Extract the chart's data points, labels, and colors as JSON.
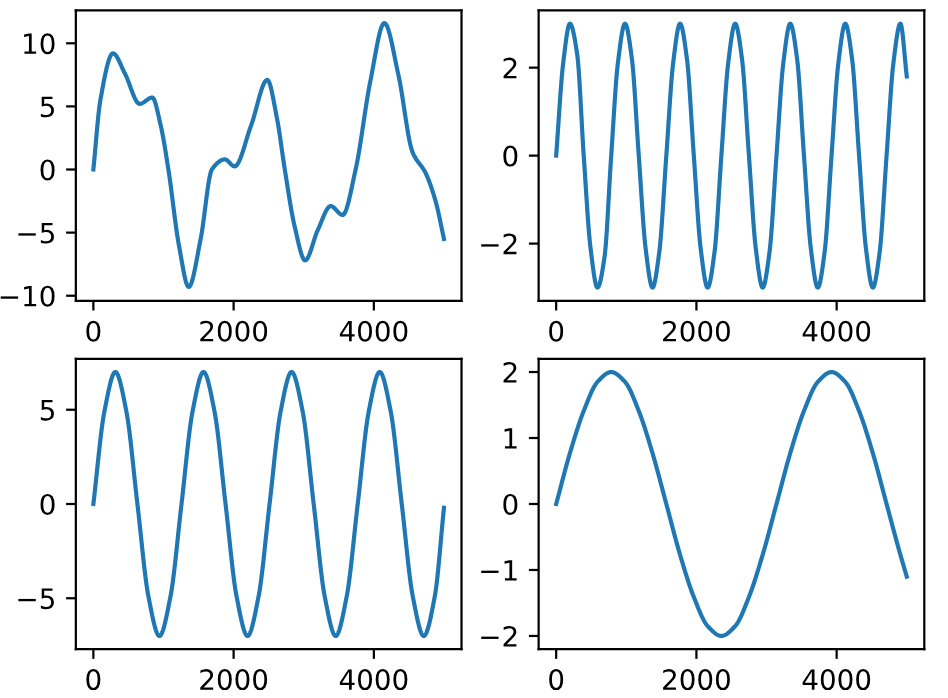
{
  "chart_data": [
    {
      "type": "line",
      "series": [
        {
          "color": "#1f77b4",
          "x": [
            0,
            100,
            280,
            450,
            660,
            840,
            960,
            1070,
            1220,
            1360,
            1530,
            1690,
            1875,
            2015,
            2250,
            2480,
            2620,
            2730,
            2870,
            3020,
            3200,
            3385,
            3555,
            3740,
            3950,
            4150,
            4350,
            4550,
            4740,
            4880,
            5000
          ],
          "values": [
            0,
            5.5,
            9.2,
            7.6,
            5.2,
            5.7,
            3.5,
            0,
            -6,
            -9.3,
            -5.5,
            0,
            0.8,
            0.25,
            3.5,
            7.1,
            4,
            0,
            -4.5,
            -7.2,
            -4.8,
            -2.9,
            -3.6,
            0,
            7,
            11.6,
            7.5,
            1.4,
            -0.3,
            -2.5,
            -5.5
          ]
        }
      ],
      "xlim": [
        -250,
        5250
      ],
      "ylim": [
        -10.4,
        12.6
      ],
      "xticks": [
        0,
        2000,
        4000
      ],
      "yticks": [
        -10,
        -5,
        0,
        5,
        10
      ],
      "grid": false,
      "legend": false
    },
    {
      "type": "line",
      "series": [
        {
          "color": "#1f77b4",
          "x": [
            0,
            100,
            196,
            300,
            393,
            490,
            589,
            690,
            785,
            880,
            982,
            1080,
            1178,
            1275,
            1374,
            1470,
            1571,
            1668,
            1767,
            1865,
            1963,
            2060,
            2160,
            2258,
            2356,
            2453,
            2553,
            2650,
            2749,
            2846,
            2945,
            3042,
            3142,
            3239,
            3338,
            3436,
            3534,
            3631,
            3731,
            3828,
            3927,
            4024,
            4123,
            4220,
            4320,
            4417,
            4516,
            4613,
            4712,
            4809,
            4909,
            5000
          ],
          "values": [
            0,
            2.1,
            3,
            2.3,
            0,
            -2.1,
            -3,
            -2.3,
            0,
            2.1,
            3,
            2.2,
            0,
            -2.1,
            -3,
            -2.2,
            0,
            2.1,
            3,
            2.2,
            0,
            -2.1,
            -3,
            -2.2,
            0,
            2.1,
            3,
            2.2,
            0,
            -2.1,
            -3,
            -2.2,
            0,
            2.1,
            3,
            2.2,
            0,
            -2.1,
            -3,
            -2.2,
            0,
            2.1,
            3,
            2.2,
            0,
            -2.1,
            -3,
            -2.2,
            0,
            2.1,
            3,
            1.8
          ]
        }
      ],
      "xlim": [
        -250,
        5250
      ],
      "ylim": [
        -3.3,
        3.3
      ],
      "xticks": [
        0,
        2000,
        4000
      ],
      "yticks": [
        -2,
        0,
        2
      ],
      "grid": false,
      "legend": false
    },
    {
      "type": "line",
      "series": [
        {
          "color": "#1f77b4",
          "x": [
            0,
            157,
            314,
            471,
            628,
            785,
            942,
            1100,
            1257,
            1414,
            1571,
            1728,
            1885,
            2042,
            2199,
            2356,
            2513,
            2670,
            2827,
            2985,
            3142,
            3299,
            3456,
            3613,
            3770,
            3927,
            4084,
            4241,
            4398,
            4555,
            4712,
            4869,
            5000
          ],
          "values": [
            0,
            4.9,
            7,
            4.9,
            0,
            -4.9,
            -7,
            -4.9,
            0,
            4.9,
            7,
            4.9,
            0,
            -4.9,
            -7,
            -4.9,
            0,
            4.9,
            7,
            4.9,
            0,
            -4.9,
            -7,
            -4.9,
            0,
            4.9,
            7,
            4.9,
            0,
            -4.9,
            -7,
            -4.9,
            -0.2
          ]
        }
      ],
      "xlim": [
        -250,
        5250
      ],
      "ylim": [
        -7.7,
        7.7
      ],
      "xticks": [
        0,
        2000,
        4000
      ],
      "yticks": [
        -5,
        0,
        5
      ],
      "grid": false,
      "legend": false
    },
    {
      "type": "line",
      "series": [
        {
          "color": "#1f77b4",
          "x": [
            0,
            196,
            393,
            589,
            785,
            982,
            1178,
            1374,
            1571,
            1767,
            1963,
            2160,
            2356,
            2553,
            2749,
            2945,
            3142,
            3338,
            3534,
            3731,
            3927,
            4123,
            4320,
            4516,
            4712,
            4909,
            5000
          ],
          "values": [
            0,
            0.77,
            1.41,
            1.85,
            2,
            1.85,
            1.41,
            0.77,
            0,
            -0.77,
            -1.41,
            -1.85,
            -2,
            -1.85,
            -1.41,
            -0.77,
            0,
            0.77,
            1.41,
            1.85,
            2,
            1.85,
            1.41,
            0.77,
            0,
            -0.77,
            -1.1
          ]
        }
      ],
      "xlim": [
        -250,
        5250
      ],
      "ylim": [
        -2.2,
        2.2
      ],
      "xticks": [
        0,
        2000,
        4000
      ],
      "yticks": [
        -2,
        -1,
        0,
        1,
        2
      ],
      "grid": false,
      "legend": false
    }
  ]
}
